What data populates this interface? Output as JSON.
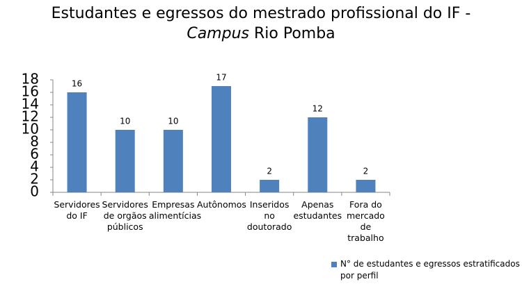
{
  "chart_data": {
    "type": "bar",
    "title": [
      "Estudantes e egressos do mestrado profissional do IF -",
      "Campus",
      "Rio Pomba"
    ],
    "categories": [
      "Servidores do IF",
      "Servidores de orgãos públicos",
      "Empresas alimentícias",
      "Autônomos",
      "Inseridos no doutorado",
      "Apenas estudantes",
      "Fora do mercado de trabalho"
    ],
    "series": [
      {
        "name": "N° de estudantes e egressos estratificados por perfil",
        "color": "#4f81bd",
        "values": [
          16,
          10,
          10,
          17,
          2,
          12,
          2
        ]
      }
    ],
    "ylim": [
      0,
      18
    ],
    "yticks": [
      0,
      2,
      4,
      6,
      8,
      10,
      12,
      14,
      16,
      18
    ],
    "grid": false,
    "legend": "bottom-right"
  }
}
